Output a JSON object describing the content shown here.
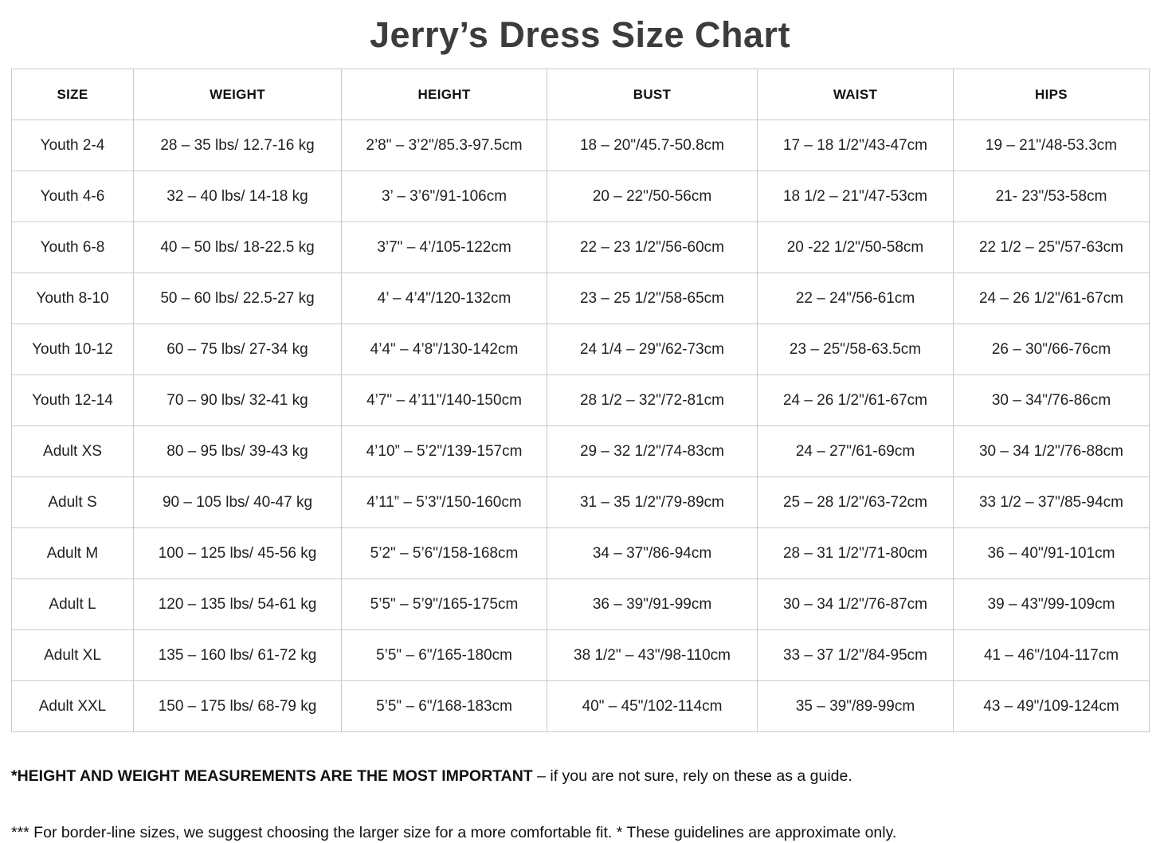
{
  "page": {
    "title": "Jerry’s Dress Size Chart"
  },
  "table": {
    "columns": [
      "SIZE",
      "WEIGHT",
      "HEIGHT",
      "BUST",
      "WAIST",
      "HIPS"
    ],
    "fields": [
      "size",
      "weight",
      "height",
      "bust",
      "waist",
      "hips"
    ],
    "rows": [
      {
        "size": "Youth 2-4",
        "weight": "28 – 35 lbs/ 12.7-16 kg",
        "height": "2’8\" – 3’2\"/85.3-97.5cm",
        "bust": "18 – 20\"/45.7-50.8cm",
        "waist": "17 – 18 1/2\"/43-47cm",
        "hips": "19 – 21\"/48-53.3cm"
      },
      {
        "size": "Youth 4-6",
        "weight": "32 – 40 lbs/ 14-18 kg",
        "height": "3’ – 3’6\"/91-106cm",
        "bust": "20 – 22\"/50-56cm",
        "waist": "18 1/2 – 21\"/47-53cm",
        "hips": "21- 23\"/53-58cm"
      },
      {
        "size": "Youth 6-8",
        "weight": "40 – 50 lbs/ 18-22.5 kg",
        "height": "3’7\" – 4’/105-122cm",
        "bust": "22 – 23 1/2\"/56-60cm",
        "waist": "20 -22 1/2\"/50-58cm",
        "hips": "22 1/2 – 25\"/57-63cm"
      },
      {
        "size": "Youth 8-10",
        "weight": "50 – 60 lbs/ 22.5-27 kg",
        "height": "4’ – 4’4\"/120-132cm",
        "bust": "23 – 25 1/2\"/58-65cm",
        "waist": "22 – 24\"/56-61cm",
        "hips": "24 – 26 1/2\"/61-67cm"
      },
      {
        "size": "Youth 10-12",
        "weight": "60 – 75 lbs/ 27-34 kg",
        "height": "4’4\" – 4’8\"/130-142cm",
        "bust": "24 1/4 – 29\"/62-73cm",
        "waist": "23 – 25\"/58-63.5cm",
        "hips": "26 – 30\"/66-76cm"
      },
      {
        "size": "Youth 12-14",
        "weight": "70 – 90 lbs/ 32-41 kg",
        "height": "4’7\" – 4’11\"/140-150cm",
        "bust": "28 1/2 – 32\"/72-81cm",
        "waist": "24 – 26 1/2\"/61-67cm",
        "hips": "30 – 34\"/76-86cm"
      },
      {
        "size": "Adult XS",
        "weight": "80 – 95 lbs/ 39-43 kg",
        "height": "4’10” – 5’2\"/139-157cm",
        "bust": "29 – 32 1/2\"/74-83cm",
        "waist": "24 – 27\"/61-69cm",
        "hips": "30 – 34 1/2\"/76-88cm"
      },
      {
        "size": "Adult S",
        "weight": "90 – 105 lbs/ 40-47 kg",
        "height": "4’11” – 5’3\"/150-160cm",
        "bust": "31 – 35 1/2\"/79-89cm",
        "waist": "25 – 28 1/2\"/63-72cm",
        "hips": "33 1/2 – 37\"/85-94cm"
      },
      {
        "size": "Adult M",
        "weight": "100 – 125 lbs/ 45-56 kg",
        "height": "5’2\" – 5’6\"/158-168cm",
        "bust": "34 – 37\"/86-94cm",
        "waist": "28 – 31 1/2\"/71-80cm",
        "hips": "36 – 40\"/91-101cm"
      },
      {
        "size": "Adult L",
        "weight": "120 – 135 lbs/ 54-61 kg",
        "height": "5’5\" – 5’9\"/165-175cm",
        "bust": "36 – 39\"/91-99cm",
        "waist": "30 – 34 1/2\"/76-87cm",
        "hips": "39 – 43\"/99-109cm"
      },
      {
        "size": "Adult XL",
        "weight": "135 – 160 lbs/ 61-72 kg",
        "height": "5’5\" – 6\"/165-180cm",
        "bust": "38 1/2\" – 43\"/98-110cm",
        "waist": "33 – 37 1/2\"/84-95cm",
        "hips": "41 – 46\"/104-117cm"
      },
      {
        "size": "Adult XXL",
        "weight": "150 – 175 lbs/ 68-79 kg",
        "height": "5’5\" – 6\"/168-183cm",
        "bust": "40\" – 45\"/102-114cm",
        "waist": "35 – 39\"/89-99cm",
        "hips": "43 – 49\"/109-124cm"
      }
    ]
  },
  "notes": {
    "note1_bold": "*HEIGHT AND WEIGHT MEASUREMENTS ARE THE MOST IMPORTANT",
    "note1_rest": " – if you are not sure, rely on these as a guide.",
    "note2": "*** For border-line sizes, we suggest choosing the larger size for a more comfortable fit. * These guidelines are approximate only."
  },
  "colors": {
    "title_text": "#3c3c3c",
    "body_text": "#1f1f1f",
    "table_border": "#c9c9c9",
    "background": "#ffffff"
  }
}
